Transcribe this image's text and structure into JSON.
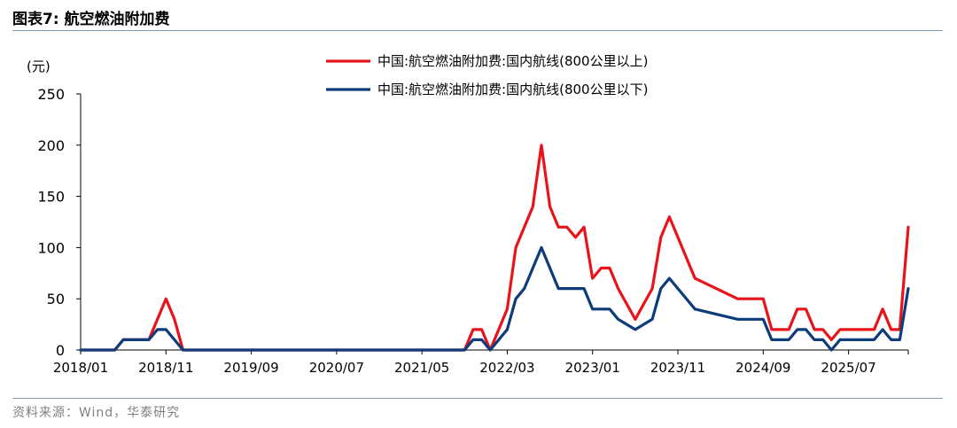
{
  "header": {
    "title": "图表7:  航空燃油附加费"
  },
  "footer": {
    "source": "资料来源：Wind，华泰研究"
  },
  "colors": {
    "series_above_800": "#e8141a",
    "series_below_800": "#0e3c7a",
    "rule": "#7f9fbf"
  },
  "chart_data": {
    "type": "line",
    "title": "",
    "ylabel": "(元)",
    "ylim": [
      0,
      250
    ],
    "yticks": [
      0,
      50,
      100,
      150,
      200,
      250
    ],
    "x_tick_labels": [
      "2018/01",
      "2018/11",
      "2019/09",
      "2020/07",
      "2021/05",
      "2022/03",
      "2023/01",
      "2023/11",
      "2024/09",
      "2025/07"
    ],
    "x_tick_months": [
      "2018-01",
      "2018-11",
      "2019-09",
      "2020-07",
      "2021-05",
      "2022-03",
      "2023-01",
      "2023-11",
      "2024-09",
      "2025-07"
    ],
    "x_range": [
      "2018-01",
      "2026-02"
    ],
    "legend_position": "top",
    "series": [
      {
        "name": "中国:航空燃油附加费:国内航线(800公里以上)",
        "points": [
          [
            "2018-01",
            0
          ],
          [
            "2018-05",
            0
          ],
          [
            "2018-06",
            10
          ],
          [
            "2018-09",
            10
          ],
          [
            "2018-11",
            50
          ],
          [
            "2018-12",
            30
          ],
          [
            "2019-01",
            0
          ],
          [
            "2021-10",
            0
          ],
          [
            "2021-11",
            20
          ],
          [
            "2021-12",
            20
          ],
          [
            "2022-01",
            0
          ],
          [
            "2022-02",
            20
          ],
          [
            "2022-03",
            40
          ],
          [
            "2022-04",
            100
          ],
          [
            "2022-05",
            120
          ],
          [
            "2022-06",
            140
          ],
          [
            "2022-07",
            200
          ],
          [
            "2022-08",
            140
          ],
          [
            "2022-09",
            120
          ],
          [
            "2022-10",
            120
          ],
          [
            "2022-11",
            110
          ],
          [
            "2022-12",
            120
          ],
          [
            "2023-01",
            70
          ],
          [
            "2023-02",
            80
          ],
          [
            "2023-03",
            80
          ],
          [
            "2023-04",
            60
          ],
          [
            "2023-06",
            30
          ],
          [
            "2023-08",
            60
          ],
          [
            "2023-09",
            110
          ],
          [
            "2023-10",
            130
          ],
          [
            "2023-11",
            110
          ],
          [
            "2024-01",
            70
          ],
          [
            "2024-06",
            50
          ],
          [
            "2024-09",
            50
          ],
          [
            "2024-10",
            20
          ],
          [
            "2024-12",
            20
          ],
          [
            "2025-01",
            40
          ],
          [
            "2025-02",
            40
          ],
          [
            "2025-03",
            20
          ],
          [
            "2025-04",
            20
          ],
          [
            "2025-05",
            10
          ],
          [
            "2025-06",
            20
          ],
          [
            "2025-10",
            20
          ],
          [
            "2025-11",
            40
          ],
          [
            "2025-12",
            20
          ],
          [
            "2026-01",
            20
          ],
          [
            "2026-02",
            120
          ]
        ]
      },
      {
        "name": "中国:航空燃油附加费:国内航线(800公里以下)",
        "points": [
          [
            "2018-01",
            0
          ],
          [
            "2018-05",
            0
          ],
          [
            "2018-06",
            10
          ],
          [
            "2018-09",
            10
          ],
          [
            "2018-10",
            20
          ],
          [
            "2018-11",
            20
          ],
          [
            "2018-12",
            10
          ],
          [
            "2019-01",
            0
          ],
          [
            "2021-10",
            0
          ],
          [
            "2021-11",
            10
          ],
          [
            "2021-12",
            10
          ],
          [
            "2022-01",
            0
          ],
          [
            "2022-03",
            20
          ],
          [
            "2022-04",
            50
          ],
          [
            "2022-05",
            60
          ],
          [
            "2022-06",
            80
          ],
          [
            "2022-07",
            100
          ],
          [
            "2022-08",
            80
          ],
          [
            "2022-09",
            60
          ],
          [
            "2022-12",
            60
          ],
          [
            "2023-01",
            40
          ],
          [
            "2023-03",
            40
          ],
          [
            "2023-04",
            30
          ],
          [
            "2023-06",
            20
          ],
          [
            "2023-08",
            30
          ],
          [
            "2023-09",
            60
          ],
          [
            "2023-10",
            70
          ],
          [
            "2023-11",
            60
          ],
          [
            "2024-01",
            40
          ],
          [
            "2024-06",
            30
          ],
          [
            "2024-09",
            30
          ],
          [
            "2024-10",
            10
          ],
          [
            "2024-12",
            10
          ],
          [
            "2025-01",
            20
          ],
          [
            "2025-02",
            20
          ],
          [
            "2025-03",
            10
          ],
          [
            "2025-04",
            10
          ],
          [
            "2025-05",
            0
          ],
          [
            "2025-06",
            10
          ],
          [
            "2025-10",
            10
          ],
          [
            "2025-11",
            20
          ],
          [
            "2025-12",
            10
          ],
          [
            "2026-01",
            10
          ],
          [
            "2026-02",
            60
          ]
        ]
      }
    ]
  }
}
